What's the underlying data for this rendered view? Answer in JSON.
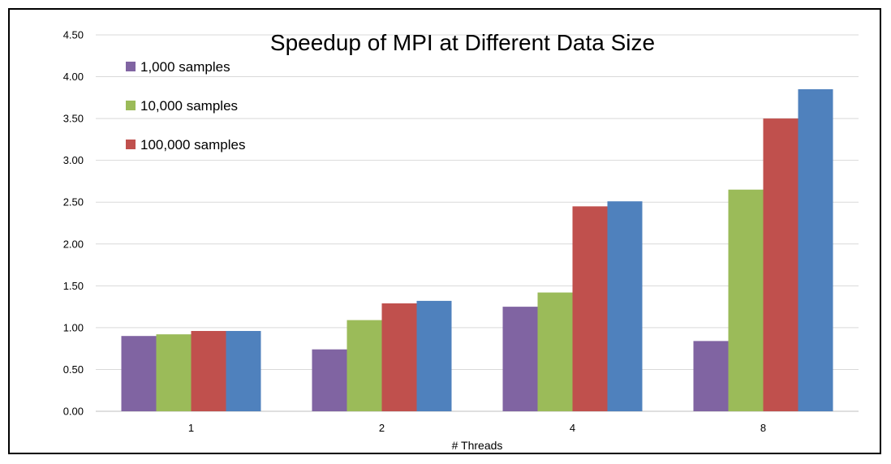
{
  "chart_data": {
    "type": "bar",
    "title": "Speedup of MPI at Different Data Size",
    "xlabel": "# Threads",
    "ylabel": "",
    "categories": [
      "1",
      "2",
      "4",
      "8"
    ],
    "ylim": [
      0,
      4.5
    ],
    "yticks": [
      "0.00",
      "0.50",
      "1.00",
      "1.50",
      "2.00",
      "2.50",
      "3.00",
      "3.50",
      "4.00",
      "4.50"
    ],
    "grid": true,
    "legend_position": "top-left",
    "series": [
      {
        "name": "1,000 samples",
        "color": "#8064a2",
        "values": [
          0.9,
          0.74,
          1.25,
          0.84
        ]
      },
      {
        "name": "10,000 samples",
        "color": "#9bbb59",
        "values": [
          0.92,
          1.09,
          1.42,
          2.65
        ]
      },
      {
        "name": "100,000 samples",
        "color": "#c0504d",
        "values": [
          0.96,
          1.29,
          2.45,
          3.5
        ]
      },
      {
        "color": "#4f81bd",
        "values": [
          0.96,
          1.32,
          2.51,
          3.85
        ]
      }
    ]
  }
}
